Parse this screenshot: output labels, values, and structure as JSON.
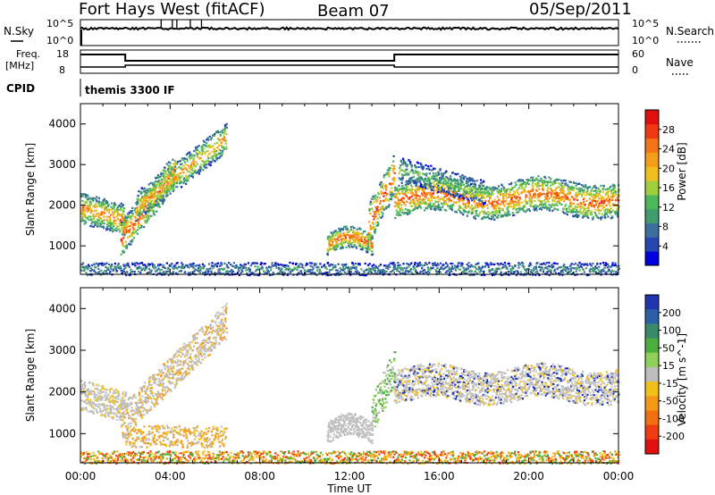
{
  "header": {
    "title": "Fort Hays West (fitACF)",
    "beam": "Beam 07",
    "date": "05/Sep/2011"
  },
  "top_panels": {
    "noise": {
      "left_label": "N.Sky",
      "right_label": "N.Search",
      "left_ticks": [
        "10^5",
        "10^0"
      ],
      "right_ticks": [
        "10^5",
        "10^0"
      ]
    },
    "freq": {
      "left_label_1": "Freq.",
      "left_label_2": "[MHz]",
      "right_label": "Nave",
      "left_ticks": [
        "18",
        "8"
      ],
      "right_ticks": [
        "60",
        "0"
      ]
    },
    "cpid": {
      "label": "CPID",
      "program": "themis 3300 IF"
    }
  },
  "chart_data": [
    {
      "type": "heatmap",
      "quantity": "power",
      "ylabel": "Slant Range [km]",
      "xlabel": "",
      "ylim": [
        300,
        4500
      ],
      "yticks": [
        1000,
        2000,
        3000,
        4000
      ],
      "xlim_hours": [
        0,
        24
      ],
      "colorbar": {
        "label": "Power [dB]",
        "ticks": [
          4,
          8,
          12,
          16,
          20,
          24,
          28
        ],
        "range": [
          0,
          32
        ],
        "colors": [
          "#0000dd",
          "#2346b0",
          "#3c6fa0",
          "#3f9c6e",
          "#4db85a",
          "#9ecf3c",
          "#f0c020",
          "#f59c18",
          "#f57215",
          "#ee3a14",
          "#e01010"
        ]
      },
      "features": [
        {
          "name": "early-evening-band",
          "time_h": [
            0.0,
            2.0
          ],
          "range_km": [
            1400,
            2500
          ],
          "peak_db": 24
        },
        {
          "name": "arc-04h",
          "time_h": [
            1.8,
            6.5
          ],
          "range_km": [
            900,
            3800
          ],
          "peak_db": 28
        },
        {
          "name": "patch-12h",
          "time_h": [
            11.0,
            13.0
          ],
          "range_km": [
            800,
            1400
          ],
          "peak_db": 28
        },
        {
          "name": "rise-13h",
          "time_h": [
            12.8,
            14.0
          ],
          "range_km": [
            1200,
            3200
          ],
          "peak_db": 28
        },
        {
          "name": "night-band",
          "time_h": [
            14.0,
            24.0
          ],
          "range_km": [
            1600,
            2800
          ],
          "peak_db": 28
        }
      ]
    },
    {
      "type": "heatmap",
      "quantity": "velocity",
      "ylabel": "Slant Range [km]",
      "xlabel": "Time UT",
      "ylim": [
        300,
        4500
      ],
      "yticks": [
        1000,
        2000,
        3000,
        4000
      ],
      "xlim_hours": [
        0,
        24
      ],
      "xticks": [
        "00:00",
        "04:00",
        "08:00",
        "12:00",
        "16:00",
        "20:00",
        "00:00"
      ],
      "colorbar": {
        "label": "Velocity [m s^-1]",
        "tick_labels": [
          "200",
          "100",
          "50",
          "15",
          "-15",
          "-50",
          "-100",
          "-200"
        ],
        "colors": [
          "#1f35b0",
          "#2d5fa8",
          "#3a8a6a",
          "#4cae3c",
          "#8ed05a",
          "#bdbdbd",
          "#f2c018",
          "#f59818",
          "#f2700f",
          "#ee3c10",
          "#e01010"
        ]
      },
      "features": [
        {
          "name": "ground-scatter-band",
          "time_h": [
            0.0,
            24.0
          ],
          "range_km": [
            1800,
            2600
          ],
          "velocity": 0
        },
        {
          "name": "green-arc-13h",
          "time_h": [
            13.0,
            14.0
          ],
          "range_km": [
            1100,
            3100
          ],
          "velocity": 50
        },
        {
          "name": "near-range-orange",
          "time_h": [
            2.0,
            6.5
          ],
          "range_km": [
            600,
            1600
          ],
          "velocity": -50
        }
      ]
    }
  ],
  "colors": {
    "axis": "#000000",
    "gray": "#bebebe"
  }
}
